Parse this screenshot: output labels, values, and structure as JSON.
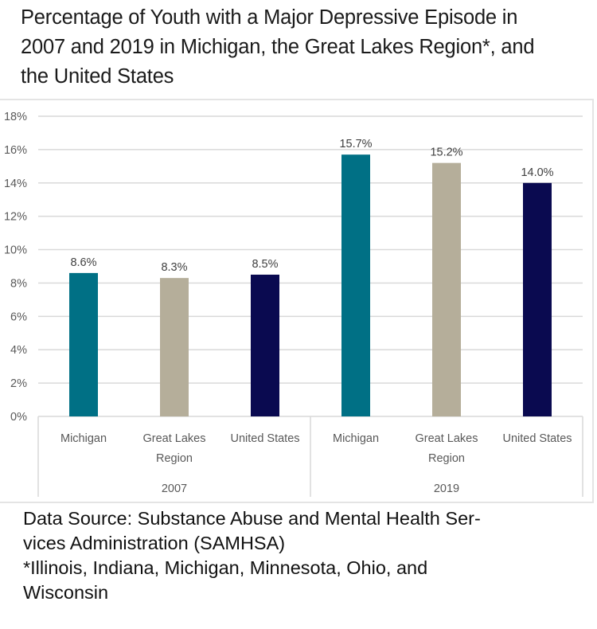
{
  "title_lines": [
    "Percentage of Youth with a Major Depressive Episode in",
    "2007 and 2019 in Michigan, the Great Lakes Region*, and",
    "the United States"
  ],
  "footer_lines": [
    "Data Source: Substance Abuse and Mental Health Ser-",
    "vices Administration (SAMHSA)",
    "*Illinois, Indiana, Michigan, Minnesota, Ohio, and",
    "Wisconsin"
  ],
  "chart_data": {
    "type": "bar",
    "title": "Percentage of Youth with a Major Depressive Episode in 2007 and 2019 in Michigan, the Great Lakes Region*, and the United States",
    "xlabel": "",
    "ylabel": "",
    "ylim": [
      0,
      18
    ],
    "yticks": [
      0,
      2,
      4,
      6,
      8,
      10,
      12,
      14,
      16,
      18
    ],
    "ytick_labels": [
      "0%",
      "2%",
      "4%",
      "6%",
      "8%",
      "10%",
      "12%",
      "14%",
      "16%",
      "18%"
    ],
    "grid": true,
    "legend": "none",
    "groups": [
      {
        "label": "2007",
        "categories": [
          {
            "label_lines": [
              "Michigan"
            ],
            "value": 8.6,
            "data_label": "8.6%",
            "color": "#007085"
          },
          {
            "label_lines": [
              "Great Lakes",
              "Region"
            ],
            "value": 8.3,
            "data_label": "8.3%",
            "color": "#B5AE9A"
          },
          {
            "label_lines": [
              "United States"
            ],
            "value": 8.5,
            "data_label": "8.5%",
            "color": "#0A0A50"
          }
        ]
      },
      {
        "label": "2019",
        "categories": [
          {
            "label_lines": [
              "Michigan"
            ],
            "value": 15.7,
            "data_label": "15.7%",
            "color": "#007085"
          },
          {
            "label_lines": [
              "Great Lakes",
              "Region"
            ],
            "value": 15.2,
            "data_label": "15.2%",
            "color": "#B5AE9A"
          },
          {
            "label_lines": [
              "United States"
            ],
            "value": 14.0,
            "data_label": "14.0%",
            "color": "#0A0A50"
          }
        ]
      }
    ],
    "series_colors": {
      "Michigan": "#007085",
      "Great Lakes Region": "#B5AE9A",
      "United States": "#0A0A50"
    }
  }
}
